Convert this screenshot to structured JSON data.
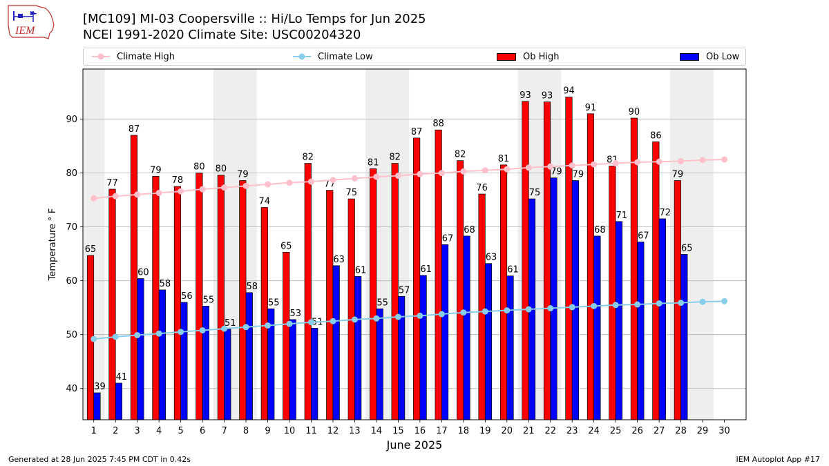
{
  "header": {
    "title_line1": "[MC109] MI-03 Coopersville  :: Hi/Lo Temps for Jun 2025",
    "title_line2": "NCEI 1991-2020 Climate Site: USC00204320",
    "logo_text": "IEM"
  },
  "footer": {
    "left": "Generated at 28 Jun 2025 7:45 PM CDT in 0.42s",
    "right": "IEM Autoplot App #17"
  },
  "legend": {
    "climate_high": "Climate High",
    "climate_low": "Climate Low",
    "ob_high": "Ob High",
    "ob_low": "Ob Low"
  },
  "colors": {
    "ob_high": "#ff0000",
    "ob_low": "#0000ff",
    "climate_high": "#ffc0cb",
    "climate_low": "#87ceeb",
    "weekend_shade": "#eeeeee",
    "grid": "#b0b0b0"
  },
  "chart_data": {
    "type": "bar",
    "xlabel": "June 2025",
    "ylabel": "Temperature $^\\circ$F",
    "ylim": [
      34.2,
      99.3
    ],
    "yticks": [
      40,
      50,
      60,
      70,
      80,
      90
    ],
    "grid": "horizontal",
    "legend_position": "top",
    "categories": [
      "1",
      "2",
      "3",
      "4",
      "5",
      "6",
      "7",
      "8",
      "9",
      "10",
      "11",
      "12",
      "13",
      "14",
      "15",
      "16",
      "17",
      "18",
      "19",
      "20",
      "21",
      "22",
      "23",
      "24",
      "25",
      "26",
      "27",
      "28",
      "29",
      "30"
    ],
    "weekend_days": [
      1,
      7,
      8,
      14,
      15,
      21,
      22,
      28,
      29
    ],
    "series": [
      {
        "name": "Ob High",
        "kind": "bar",
        "values": [
          64.7,
          77.0,
          87.0,
          79.4,
          77.5,
          80.0,
          79.6,
          78.6,
          73.6,
          65.3,
          81.8,
          76.8,
          75.2,
          80.8,
          81.8,
          86.5,
          88.0,
          82.3,
          76.1,
          81.5,
          93.3,
          93.2,
          94.1,
          91.0,
          81.3,
          90.2,
          85.8,
          78.6,
          null,
          null
        ],
        "labels": [
          "65",
          "77",
          "87",
          "79",
          "78",
          "80",
          "80",
          "79",
          "74",
          "65",
          "82",
          "77",
          "75",
          "81",
          "82",
          "87",
          "88",
          "82",
          "76",
          "81",
          "93",
          "93",
          "94",
          "91",
          "81",
          "90",
          "86",
          "79",
          "",
          ""
        ]
      },
      {
        "name": "Ob Low",
        "kind": "bar",
        "values": [
          39.2,
          41.0,
          60.4,
          58.3,
          56.0,
          55.3,
          51.0,
          57.8,
          54.8,
          52.8,
          51.2,
          62.8,
          60.8,
          54.8,
          57.1,
          61.0,
          66.7,
          68.3,
          63.2,
          60.9,
          75.2,
          79.1,
          78.6,
          68.3,
          71.0,
          67.2,
          71.5,
          64.9,
          null,
          null
        ],
        "labels": [
          "39",
          "41",
          "60",
          "58",
          "56",
          "55",
          "51",
          "58",
          "55",
          "53",
          "51",
          "63",
          "61",
          "55",
          "57",
          "61",
          "67",
          "68",
          "63",
          "61",
          "75",
          "79",
          "79",
          "68",
          "71",
          "67",
          "72",
          "65",
          "",
          ""
        ]
      },
      {
        "name": "Climate High",
        "kind": "line",
        "values": [
          75.3,
          75.7,
          76.0,
          76.3,
          76.6,
          77.0,
          77.3,
          77.6,
          77.9,
          78.2,
          78.4,
          78.7,
          79.0,
          79.3,
          79.5,
          79.8,
          80.0,
          80.3,
          80.5,
          80.7,
          81.0,
          81.2,
          81.4,
          81.6,
          81.8,
          82.0,
          82.1,
          82.2,
          82.4,
          82.5
        ]
      },
      {
        "name": "Climate Low",
        "kind": "line",
        "values": [
          49.2,
          49.6,
          49.9,
          50.2,
          50.5,
          50.8,
          51.1,
          51.4,
          51.7,
          52.0,
          52.3,
          52.5,
          52.8,
          53.0,
          53.3,
          53.5,
          53.8,
          54.1,
          54.3,
          54.5,
          54.7,
          54.9,
          55.1,
          55.3,
          55.5,
          55.6,
          55.8,
          55.9,
          56.1,
          56.2
        ]
      }
    ]
  }
}
